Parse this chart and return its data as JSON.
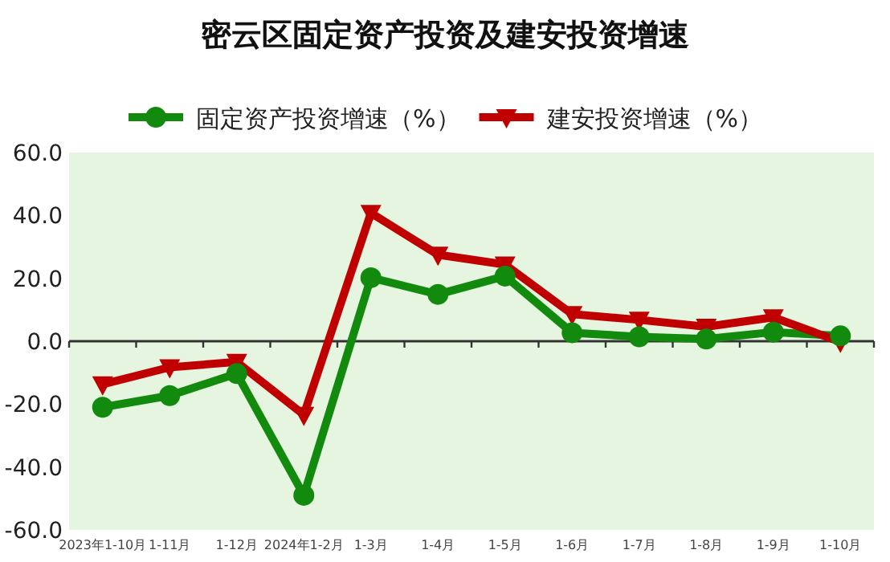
{
  "chart_data": {
    "type": "line",
    "title": "密云区固定资产投资及建安投资增速",
    "categories": [
      "2023年1-10月",
      "1-11月",
      "1-12月",
      "2024年1-2月",
      "1-3月",
      "1-4月",
      "1-5月",
      "1-6月",
      "1-7月",
      "1-8月",
      "1-9月",
      "1-10月"
    ],
    "series": [
      {
        "name": "固定资产投资增速（%）",
        "color": "#118a0e",
        "marker": "circle",
        "values": [
          -21.0,
          -17.3,
          -10.3,
          -49.0,
          20.2,
          14.9,
          20.7,
          2.7,
          1.4,
          0.7,
          2.9,
          1.7
        ]
      },
      {
        "name": "建安投资增速（%）",
        "color": "#c00000",
        "marker": "triangle",
        "values": [
          -13.7,
          -8.3,
          -6.6,
          -23.4,
          40.8,
          27.5,
          24.4,
          8.6,
          6.8,
          4.6,
          7.6,
          -0.2
        ]
      }
    ],
    "ylim": [
      -60,
      60
    ],
    "yticks": [
      {
        "value": -60,
        "label": "-60.0"
      },
      {
        "value": -40,
        "label": "-40.0"
      },
      {
        "value": -20,
        "label": "-20.0"
      },
      {
        "value": 0,
        "label": "0.0"
      },
      {
        "value": 20,
        "label": "20.0"
      },
      {
        "value": 40,
        "label": "40.0"
      },
      {
        "value": 60,
        "label": "60.0"
      }
    ],
    "legend": "top"
  }
}
